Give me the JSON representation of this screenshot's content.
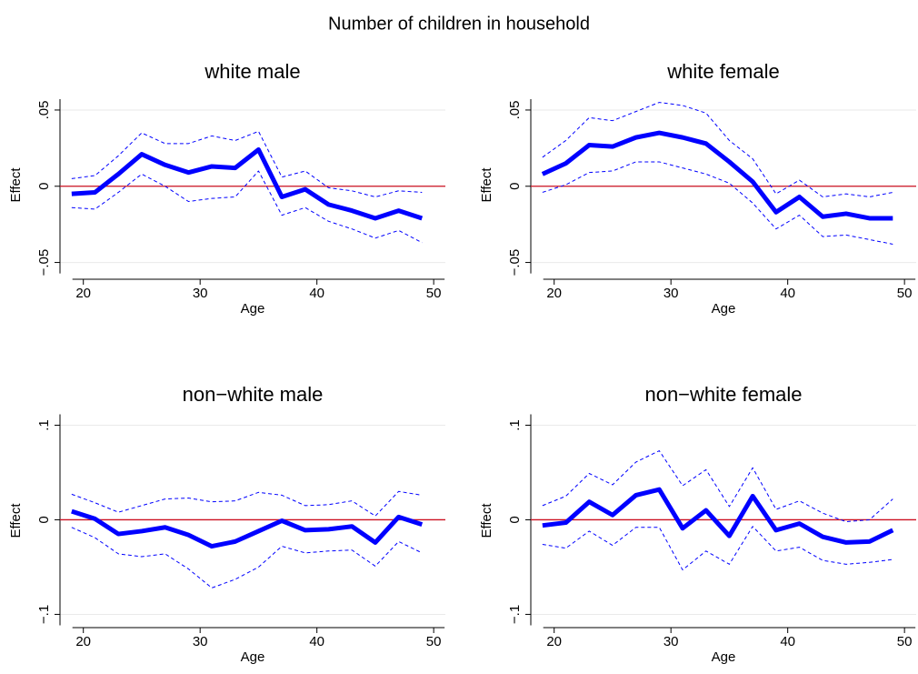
{
  "title": "Number of children in household",
  "chart_data": [
    {
      "type": "line",
      "title": "white male",
      "xlabel": "Age",
      "ylabel": "Effect",
      "x": [
        19,
        21,
        23,
        25,
        27,
        29,
        31,
        33,
        35,
        37,
        39,
        41,
        43,
        45,
        47,
        49
      ],
      "xlim": [
        18,
        51
      ],
      "xticks": [
        20,
        30,
        40,
        50
      ],
      "ylim": [
        -0.061,
        0.0625
      ],
      "yticks": [
        {
          "value": -0.05,
          "label": "−.05"
        },
        0,
        {
          "value": 0.05,
          "label": ".05"
        }
      ],
      "grid": true,
      "hline": {
        "value": 0,
        "color": "#cc1020"
      },
      "series": [
        {
          "color": "#0000ff",
          "style": "dashed",
          "values": [
            0.005,
            0.007,
            0.02,
            0.035,
            0.028,
            0.028,
            0.033,
            0.03,
            0.036,
            0.006,
            0.01,
            -0.001,
            -0.003,
            -0.007,
            -0.003,
            -0.004
          ]
        },
        {
          "color": "#0000ff",
          "style": "dashed",
          "values": [
            -0.014,
            -0.015,
            -0.004,
            0.008,
            0,
            -0.01,
            -0.008,
            -0.007,
            0.01,
            -0.019,
            -0.014,
            -0.023,
            -0.028,
            -0.034,
            -0.029,
            -0.037
          ]
        },
        {
          "color": "#0000ff",
          "style": "solid",
          "values": [
            -0.005,
            -0.004,
            0.008,
            0.021,
            0.014,
            0.009,
            0.013,
            0.012,
            0.024,
            -0.007,
            -0.002,
            -0.012,
            -0.016,
            -0.021,
            -0.016,
            -0.021
          ]
        }
      ]
    },
    {
      "type": "line",
      "title": "white female",
      "xlabel": "Age",
      "ylabel": "Effect",
      "x": [
        19,
        21,
        23,
        25,
        27,
        29,
        31,
        33,
        35,
        37,
        39,
        41,
        43,
        45,
        47,
        49
      ],
      "xlim": [
        18,
        51
      ],
      "xticks": [
        20,
        30,
        40,
        50
      ],
      "ylim": [
        -0.061,
        0.0625
      ],
      "yticks": [
        {
          "value": -0.05,
          "label": "−.05"
        },
        0,
        {
          "value": 0.05,
          "label": ".05"
        }
      ],
      "grid": true,
      "hline": {
        "value": 0,
        "color": "#cc1020"
      },
      "series": [
        {
          "color": "#0000ff",
          "style": "dashed",
          "values": [
            0.019,
            0.03,
            0.045,
            0.043,
            0.049,
            0.055,
            0.053,
            0.048,
            0.03,
            0.018,
            -0.005,
            0.004,
            -0.007,
            -0.005,
            -0.007,
            -0.004
          ]
        },
        {
          "color": "#0000ff",
          "style": "dashed",
          "values": [
            -0.004,
            0.001,
            0.009,
            0.01,
            0.016,
            0.016,
            0.012,
            0.008,
            0.002,
            -0.011,
            -0.028,
            -0.019,
            -0.033,
            -0.032,
            -0.035,
            -0.038
          ]
        },
        {
          "color": "#0000ff",
          "style": "solid",
          "values": [
            0.008,
            0.015,
            0.027,
            0.026,
            0.032,
            0.035,
            0.032,
            0.028,
            0.016,
            0.003,
            -0.017,
            -0.007,
            -0.02,
            -0.018,
            -0.021,
            -0.021
          ]
        }
      ]
    },
    {
      "type": "line",
      "title": "non−white male",
      "xlabel": "Age",
      "ylabel": "Effect",
      "x": [
        19,
        21,
        23,
        25,
        27,
        29,
        31,
        33,
        35,
        37,
        39,
        41,
        43,
        45,
        47,
        49
      ],
      "xlim": [
        18,
        51
      ],
      "xticks": [
        20,
        30,
        40,
        50
      ],
      "ylim": [
        -0.114,
        0.112
      ],
      "yticks": [
        {
          "value": -0.1,
          "label": "−.1"
        },
        0,
        {
          "value": 0.1,
          "label": ".1"
        }
      ],
      "grid": true,
      "hline": {
        "value": 0,
        "color": "#cc1020"
      },
      "series": [
        {
          "color": "#0000ff",
          "style": "dashed",
          "values": [
            0.027,
            0.018,
            0.008,
            0.015,
            0.022,
            0.023,
            0.019,
            0.02,
            0.029,
            0.026,
            0.015,
            0.016,
            0.02,
            0.004,
            0.03,
            0.026
          ]
        },
        {
          "color": "#0000ff",
          "style": "dashed",
          "values": [
            -0.008,
            -0.019,
            -0.036,
            -0.039,
            -0.036,
            -0.052,
            -0.072,
            -0.063,
            -0.05,
            -0.028,
            -0.035,
            -0.033,
            -0.032,
            -0.049,
            -0.023,
            -0.035
          ]
        },
        {
          "color": "#0000ff",
          "style": "solid",
          "values": [
            0.009,
            0.001,
            -0.015,
            -0.012,
            -0.008,
            -0.016,
            -0.028,
            -0.023,
            -0.012,
            -0.001,
            -0.011,
            -0.01,
            -0.007,
            -0.024,
            0.003,
            -0.005
          ]
        }
      ]
    },
    {
      "type": "line",
      "title": "non−white female",
      "xlabel": "Age",
      "ylabel": "Effect",
      "x": [
        19,
        21,
        23,
        25,
        27,
        29,
        31,
        33,
        35,
        37,
        39,
        41,
        43,
        45,
        47,
        49
      ],
      "xlim": [
        18,
        51
      ],
      "xticks": [
        20,
        30,
        40,
        50
      ],
      "ylim": [
        -0.114,
        0.112
      ],
      "yticks": [
        {
          "value": -0.1,
          "label": "−.1"
        },
        0,
        {
          "value": 0.1,
          "label": ".1"
        }
      ],
      "grid": true,
      "hline": {
        "value": 0,
        "color": "#cc1020"
      },
      "series": [
        {
          "color": "#0000ff",
          "style": "dashed",
          "values": [
            0.015,
            0.025,
            0.049,
            0.037,
            0.061,
            0.073,
            0.036,
            0.053,
            0.014,
            0.055,
            0.011,
            0.02,
            0.007,
            -0.002,
            0,
            0.022
          ]
        },
        {
          "color": "#0000ff",
          "style": "dashed",
          "values": [
            -0.026,
            -0.03,
            -0.012,
            -0.027,
            -0.008,
            -0.008,
            -0.053,
            -0.033,
            -0.047,
            -0.007,
            -0.033,
            -0.029,
            -0.043,
            -0.047,
            -0.045,
            -0.042
          ]
        },
        {
          "color": "#0000ff",
          "style": "solid",
          "values": [
            -0.006,
            -0.003,
            0.019,
            0.005,
            0.026,
            0.032,
            -0.009,
            0.01,
            -0.017,
            0.025,
            -0.011,
            -0.004,
            -0.018,
            -0.024,
            -0.023,
            -0.011
          ]
        }
      ]
    }
  ]
}
